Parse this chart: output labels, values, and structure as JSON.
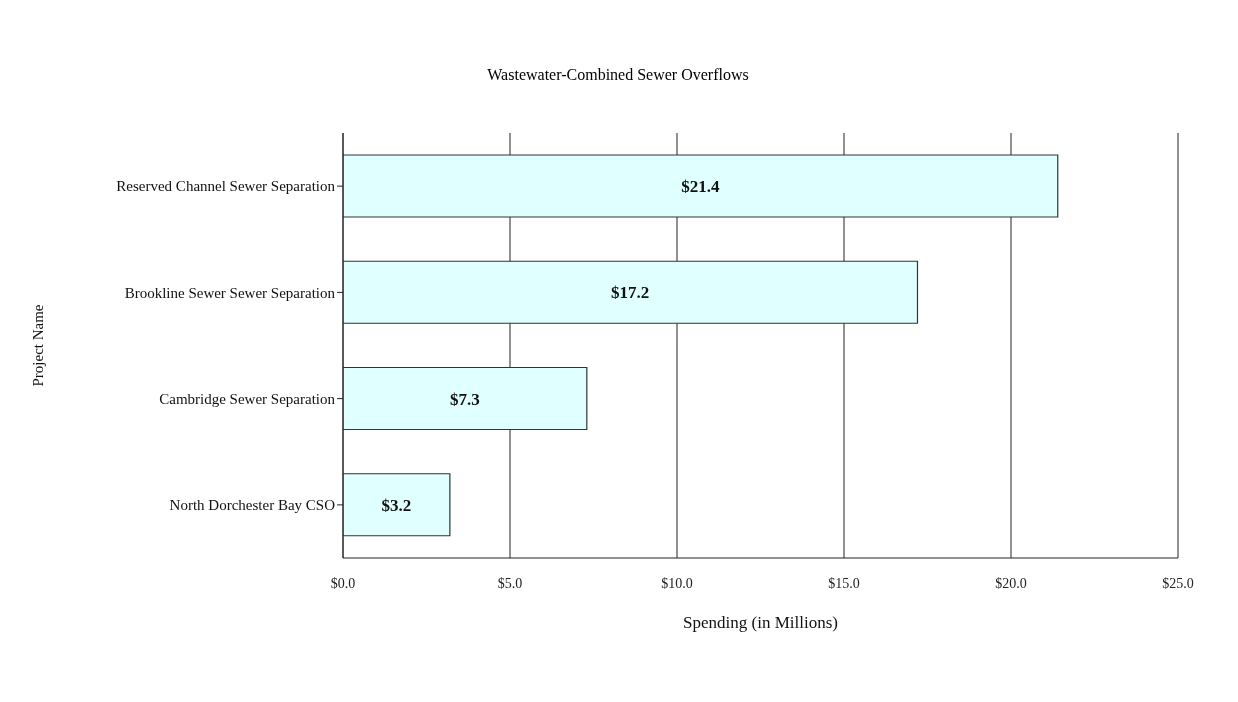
{
  "chart_data": {
    "type": "bar",
    "orientation": "horizontal",
    "title": "Wastewater-Combined Sewer Overflows",
    "xlabel": "Spending (in Millions)",
    "ylabel": "Project Name",
    "categories": [
      "Reserved Channel Sewer Separation",
      "Brookline Sewer Sewer Separation",
      "Cambridge Sewer Separation",
      "North Dorchester Bay CSO"
    ],
    "values": [
      21.4,
      17.2,
      7.3,
      3.2
    ],
    "value_labels": [
      "$21.4",
      "$17.2",
      "$7.3",
      "$3.2"
    ],
    "color": "#e0ffff",
    "xlim": [
      0,
      25
    ],
    "xticks": [
      {
        "value": 0,
        "label": "$0.0"
      },
      {
        "value": 5,
        "label": "$5.0"
      },
      {
        "value": 10,
        "label": "$10.0"
      },
      {
        "value": 15,
        "label": "$15.0"
      },
      {
        "value": 20,
        "label": "$20.0"
      },
      {
        "value": 25,
        "label": "$25.0"
      }
    ],
    "grid": "x",
    "legend": false
  }
}
